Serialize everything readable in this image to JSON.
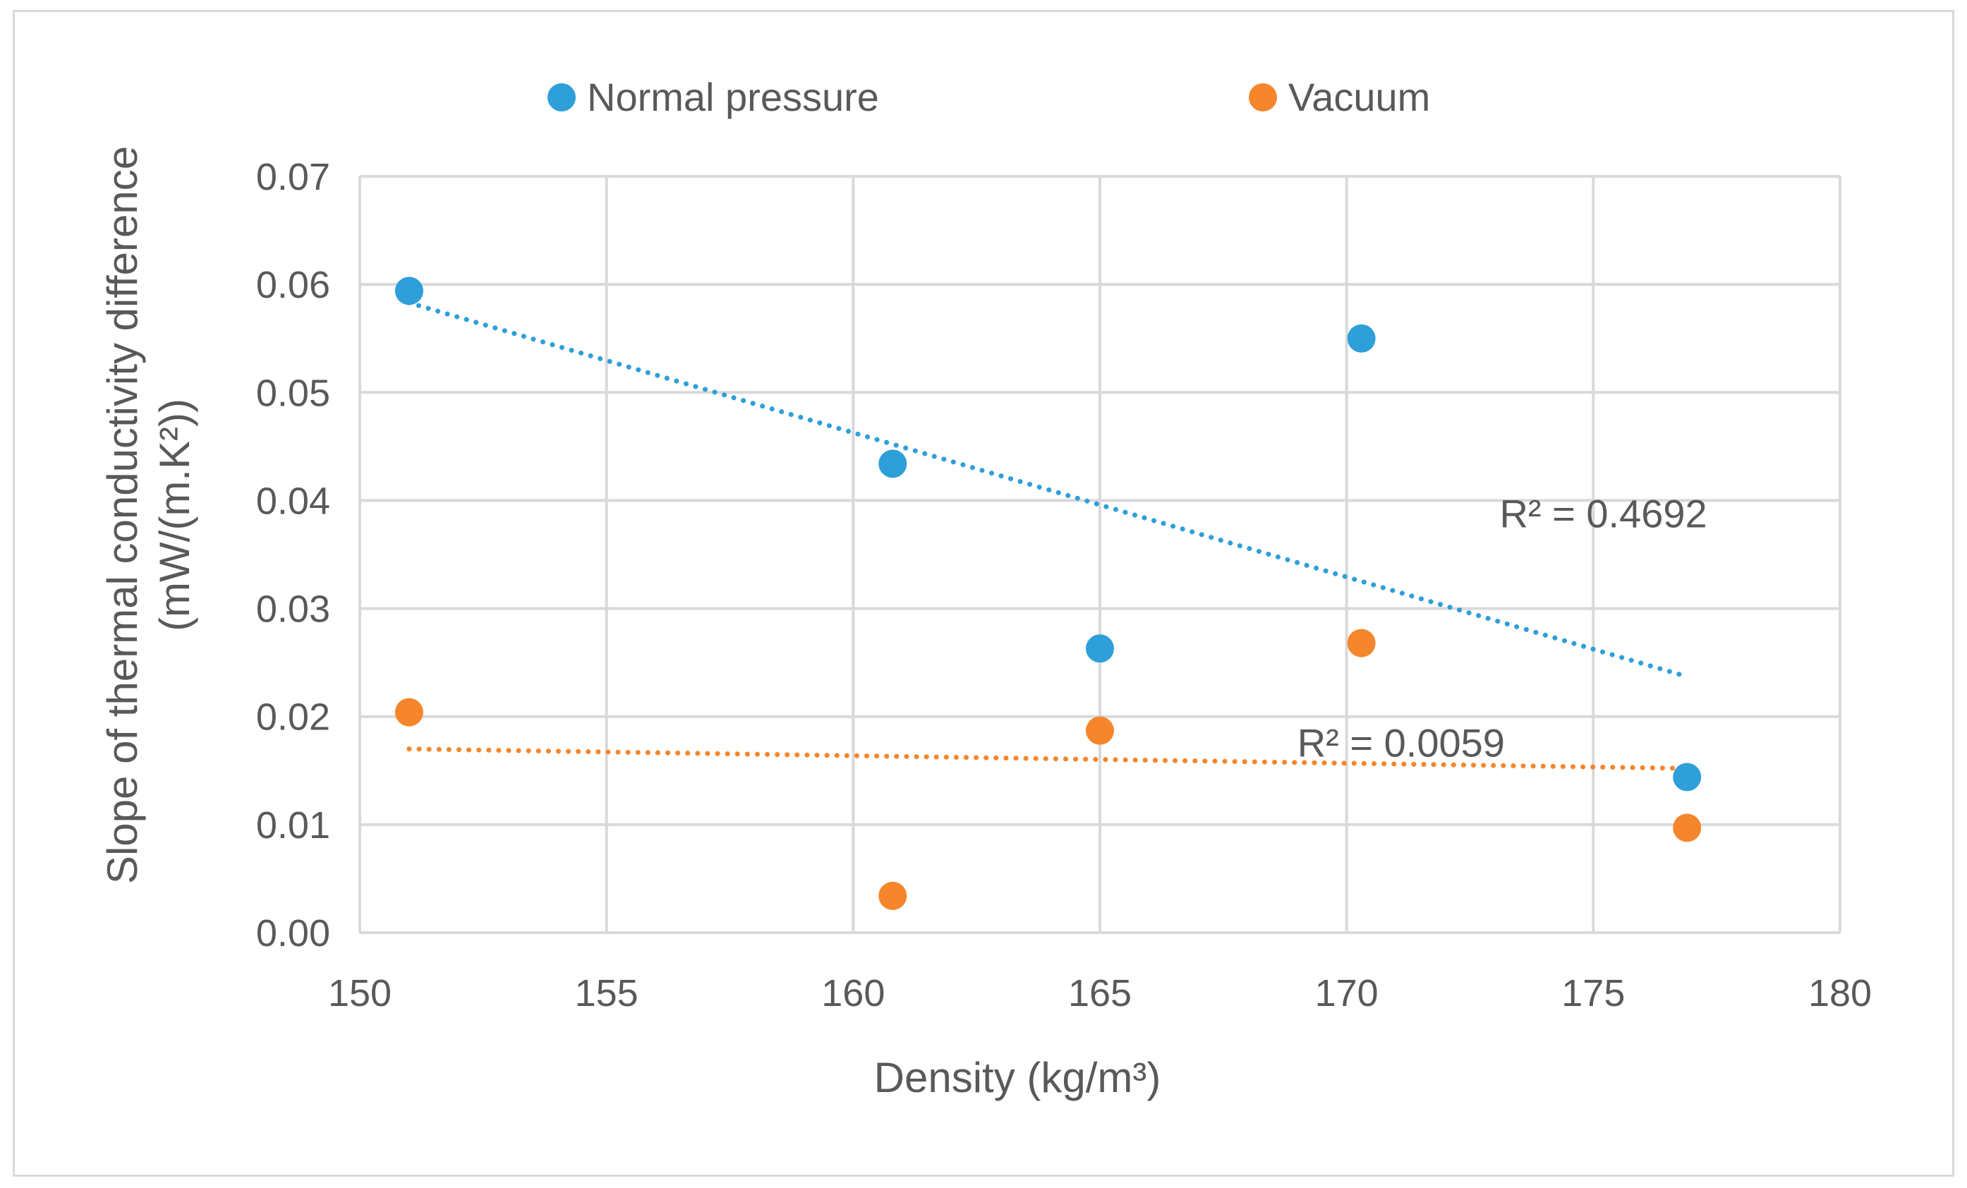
{
  "chart_data": {
    "type": "scatter",
    "xlabel": "Density (kg/m³)",
    "ylabel_line1": "Slope of thermal conductivity difference",
    "ylabel_line2": "(mW/(m.K²))",
    "xlim": [
      150,
      180
    ],
    "ylim": [
      0,
      0.07
    ],
    "x_ticks": [
      150,
      155,
      160,
      165,
      170,
      175,
      180
    ],
    "x_tick_labels": [
      "150",
      "155",
      "160",
      "165",
      "170",
      "175",
      "180"
    ],
    "y_ticks": [
      0,
      0.01,
      0.02,
      0.03,
      0.04,
      0.05,
      0.06,
      0.07
    ],
    "y_tick_labels": [
      "0.00",
      "0.01",
      "0.02",
      "0.03",
      "0.04",
      "0.05",
      "0.06",
      "0.07"
    ],
    "grid": true,
    "legend_position": "top",
    "series": [
      {
        "name": "Normal pressure",
        "color": "#2e9fd9",
        "x": [
          151,
          160.8,
          165,
          170.3,
          176.9
        ],
        "y": [
          0.0594,
          0.0434,
          0.0263,
          0.055,
          0.0144
        ],
        "trendline": {
          "style": "dotted",
          "x": [
            151,
            176.9
          ],
          "y": [
            0.0583,
            0.0237
          ],
          "label": "R² = 0.4692",
          "label_at": [
            173.1,
            0.0375
          ]
        }
      },
      {
        "name": "Vacuum",
        "color": "#f5862b",
        "x": [
          151,
          160.8,
          165,
          170.3,
          176.9
        ],
        "y": [
          0.0204,
          0.0034,
          0.0187,
          0.0268,
          0.0097
        ],
        "trendline": {
          "style": "dotted",
          "x": [
            151,
            176.9
          ],
          "y": [
            0.017,
            0.0152
          ],
          "label": "R² = 0.0059",
          "label_at": [
            169.0,
            0.0163
          ]
        }
      }
    ]
  }
}
